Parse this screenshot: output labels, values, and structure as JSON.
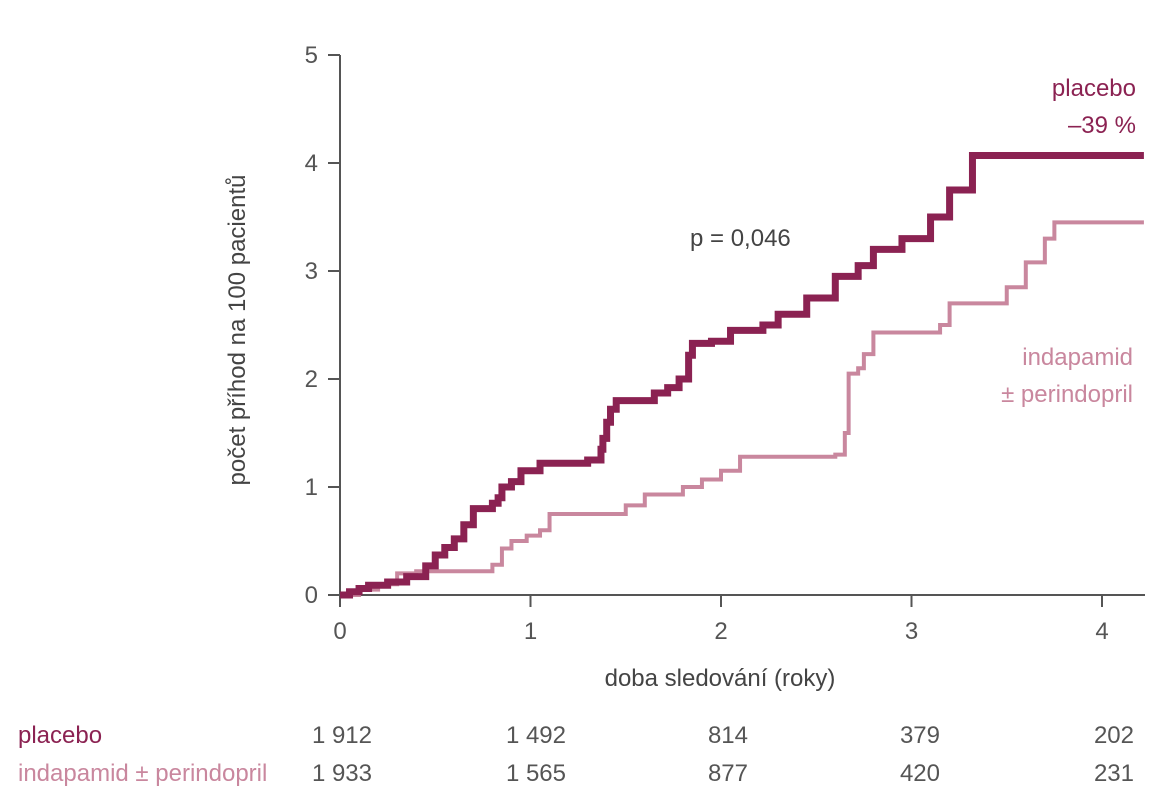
{
  "chart_data": {
    "type": "line",
    "xlabel": "doba sledování (roky)",
    "ylabel": "počet příhod na 100 pacientů",
    "xlim": [
      0,
      4.2
    ],
    "ylim": [
      0,
      5
    ],
    "x_ticks": [
      "0",
      "1",
      "2",
      "3",
      "4"
    ],
    "y_ticks": [
      "0",
      "1",
      "2",
      "3",
      "4",
      "5"
    ],
    "grid": false,
    "annotation": "p = 0,046",
    "series": [
      {
        "name": "placebo",
        "label_lines": [
          "placebo",
          "–39 %"
        ],
        "color": "#8B2252",
        "points": [
          [
            0,
            0
          ],
          [
            0.05,
            0.03
          ],
          [
            0.1,
            0.06
          ],
          [
            0.15,
            0.09
          ],
          [
            0.25,
            0.12
          ],
          [
            0.35,
            0.17
          ],
          [
            0.45,
            0.27
          ],
          [
            0.5,
            0.37
          ],
          [
            0.55,
            0.44
          ],
          [
            0.6,
            0.52
          ],
          [
            0.65,
            0.65
          ],
          [
            0.7,
            0.8
          ],
          [
            0.8,
            0.85
          ],
          [
            0.83,
            0.9
          ],
          [
            0.85,
            1.0
          ],
          [
            0.9,
            1.05
          ],
          [
            0.95,
            1.15
          ],
          [
            1.05,
            1.22
          ],
          [
            1.3,
            1.25
          ],
          [
            1.37,
            1.35
          ],
          [
            1.38,
            1.45
          ],
          [
            1.4,
            1.6
          ],
          [
            1.42,
            1.72
          ],
          [
            1.45,
            1.8
          ],
          [
            1.65,
            1.87
          ],
          [
            1.72,
            1.92
          ],
          [
            1.78,
            2.0
          ],
          [
            1.83,
            2.22
          ],
          [
            1.85,
            2.33
          ],
          [
            1.95,
            2.35
          ],
          [
            2.05,
            2.45
          ],
          [
            2.22,
            2.5
          ],
          [
            2.3,
            2.6
          ],
          [
            2.45,
            2.75
          ],
          [
            2.6,
            2.95
          ],
          [
            2.72,
            3.05
          ],
          [
            2.8,
            3.2
          ],
          [
            2.95,
            3.3
          ],
          [
            3.1,
            3.5
          ],
          [
            3.2,
            3.75
          ],
          [
            3.32,
            4.07
          ],
          [
            4.22,
            4.07
          ]
        ]
      },
      {
        "name": "indapamid ± perindopril",
        "label_lines": [
          "indapamid",
          "± perindopril"
        ],
        "color": "#C9879E",
        "points": [
          [
            0,
            0
          ],
          [
            0.1,
            0.05
          ],
          [
            0.2,
            0.1
          ],
          [
            0.3,
            0.2
          ],
          [
            0.4,
            0.22
          ],
          [
            0.8,
            0.28
          ],
          [
            0.85,
            0.43
          ],
          [
            0.9,
            0.5
          ],
          [
            0.98,
            0.55
          ],
          [
            1.05,
            0.6
          ],
          [
            1.1,
            0.75
          ],
          [
            1.5,
            0.83
          ],
          [
            1.6,
            0.93
          ],
          [
            1.8,
            1.0
          ],
          [
            1.9,
            1.07
          ],
          [
            2.0,
            1.15
          ],
          [
            2.1,
            1.28
          ],
          [
            2.6,
            1.3
          ],
          [
            2.65,
            1.5
          ],
          [
            2.67,
            2.05
          ],
          [
            2.72,
            2.1
          ],
          [
            2.75,
            2.23
          ],
          [
            2.8,
            2.43
          ],
          [
            3.15,
            2.5
          ],
          [
            3.2,
            2.7
          ],
          [
            3.5,
            2.85
          ],
          [
            3.6,
            3.08
          ],
          [
            3.7,
            3.3
          ],
          [
            3.75,
            3.45
          ],
          [
            4.22,
            3.45
          ]
        ]
      }
    ],
    "risk_table": {
      "x_ticks": [
        "0",
        "1",
        "2",
        "3",
        "4"
      ],
      "rows": [
        {
          "name": "placebo",
          "color": "#8B2252",
          "values": [
            "1 912",
            "1 492",
            "814",
            "379",
            "202"
          ]
        },
        {
          "name": "indapamid ± perindopril",
          "color": "#C9879E",
          "values": [
            "1 933",
            "1 565",
            "877",
            "420",
            "231"
          ]
        }
      ]
    }
  }
}
